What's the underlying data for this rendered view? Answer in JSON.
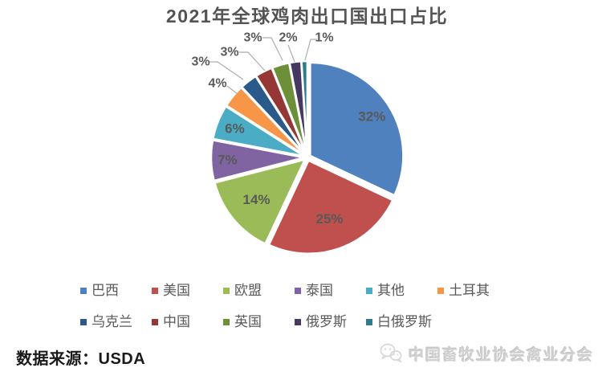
{
  "chart_data": {
    "type": "pie",
    "title": "2021年全球鸡肉出口国出口占比",
    "unit": "%",
    "categories": [
      "巴西",
      "美国",
      "欧盟",
      "泰国",
      "其他",
      "土耳其",
      "乌克兰",
      "中国",
      "英国",
      "俄罗斯",
      "白俄罗斯"
    ],
    "values": [
      32,
      25,
      14,
      7,
      6,
      4,
      3,
      3,
      3,
      2,
      1
    ],
    "colors": [
      "#4E81BD",
      "#C0504D",
      "#9BBB59",
      "#8064A2",
      "#4BACC6",
      "#F79646",
      "#2A5A8A",
      "#953735",
      "#6E8F3A",
      "#473860",
      "#2E7B8C"
    ],
    "label_color": "#595959",
    "leader_line_color": "#ADADAD",
    "legend_position": "bottom",
    "legend_rows": 2,
    "start_angle_deg": 0,
    "direction": "clockwise"
  },
  "source": {
    "text": "数据来源：USDA"
  },
  "watermark": {
    "text": "中国畜牧业协会禽业分会",
    "icon": "wechat-icon"
  }
}
